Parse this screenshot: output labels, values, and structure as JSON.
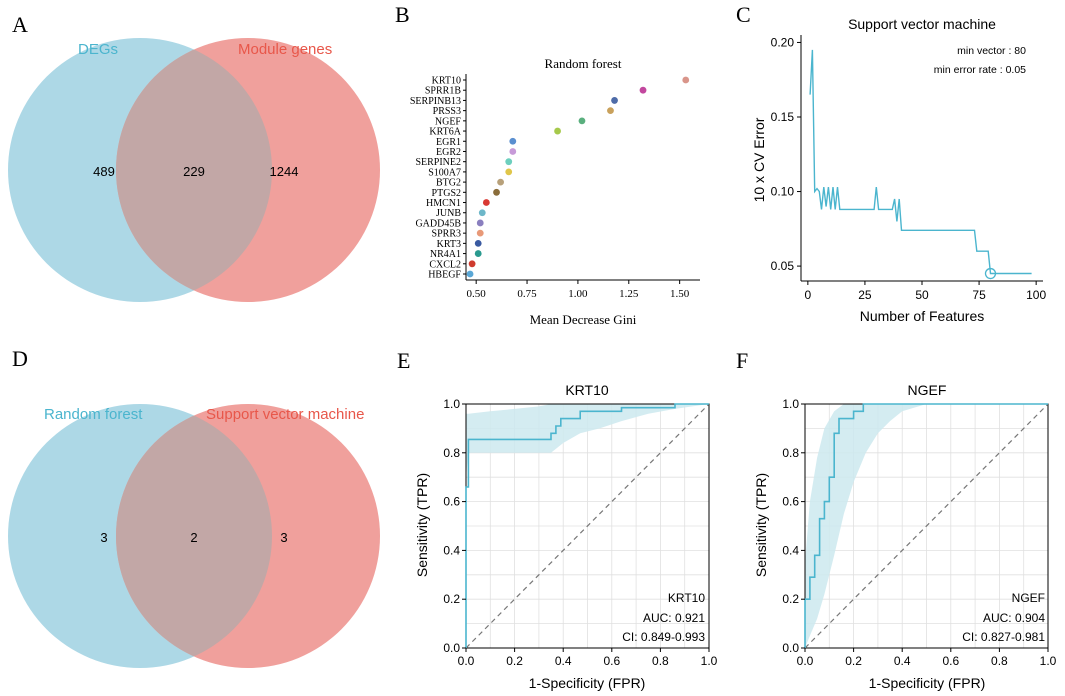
{
  "colors": {
    "venn_left": "#add8e6",
    "venn_right": "#f0a09c",
    "venn_overlap": "#c2a7a6",
    "venn_left_label": "#4bb5ce",
    "venn_right_label": "#e8574a",
    "line": "#4bb5ce",
    "ci_band": "#cde9ef",
    "grid": "#e0e0e0"
  },
  "panels": {
    "A": {
      "letter": "A",
      "left_label": "DEGs",
      "right_label": "Module genes",
      "left_only": "489",
      "overlap": "229",
      "right_only": "1244"
    },
    "D": {
      "letter": "D",
      "left_label": "Random forest",
      "right_label": "Support vector machine",
      "left_only": "3",
      "overlap": "2",
      "right_only": "3"
    },
    "B": {
      "letter": "B"
    },
    "C": {
      "letter": "C",
      "annotation_1": "min vector : 80",
      "annotation_2": "min error rate : 0.05"
    },
    "E": {
      "letter": "E",
      "legend_gene": "KRT10",
      "legend_auc": "AUC: 0.921",
      "legend_ci": "CI: 0.849-0.993"
    },
    "F": {
      "letter": "F",
      "legend_gene": "NGEF",
      "legend_auc": "AUC: 0.904",
      "legend_ci": "CI: 0.827-0.981"
    }
  },
  "chart_data": [
    {
      "id": "B",
      "type": "scatter",
      "title": "Random forest",
      "xlabel": "Mean Decrease Gini",
      "ylabel": "",
      "xlim": [
        0.45,
        1.6
      ],
      "xticks": [
        "0.50",
        "0.75",
        "1.00",
        "1.25",
        "1.50"
      ],
      "genes": [
        "KRT10",
        "SPRR1B",
        "SERPINB13",
        "PRSS3",
        "NGEF",
        "KRT6A",
        "EGR1",
        "EGR2",
        "SERPINE2",
        "S100A7",
        "BTG2",
        "PTGS2",
        "HMCN1",
        "JUNB",
        "GADD45B",
        "SPRR3",
        "KRT3",
        "NR4A1",
        "CXCL2",
        "HBEGF"
      ],
      "values": [
        1.53,
        1.32,
        1.18,
        1.16,
        1.02,
        0.9,
        0.68,
        0.68,
        0.66,
        0.66,
        0.62,
        0.6,
        0.55,
        0.53,
        0.52,
        0.52,
        0.51,
        0.51,
        0.48,
        0.47
      ],
      "colors": [
        "#d9958a",
        "#c2479e",
        "#4e6ba8",
        "#c9a15c",
        "#5aaf7e",
        "#a6c94b",
        "#5a8fd0",
        "#c79ad8",
        "#6dcfbe",
        "#e0c64a",
        "#b8a17a",
        "#8a6d3b",
        "#d93a34",
        "#6db7c9",
        "#8a7fbf",
        "#e89978",
        "#3a5aa1",
        "#2a9a8f",
        "#cf3b2e",
        "#5aa7d6"
      ]
    },
    {
      "id": "C",
      "type": "line",
      "title": "Support vector machine",
      "xlabel": "Number of Features",
      "ylabel": "10 x CV Error",
      "xlim": [
        -3,
        103
      ],
      "ylim": [
        0.04,
        0.205
      ],
      "xticks": [
        "0",
        "25",
        "50",
        "75",
        "100"
      ],
      "yticks": [
        "0.05",
        "0.10",
        "0.15",
        "0.20"
      ],
      "x": [
        1,
        2,
        3,
        4,
        5,
        6,
        7,
        8,
        9,
        10,
        11,
        12,
        13,
        14,
        15,
        20,
        25,
        29,
        30,
        31,
        35,
        37,
        38,
        39,
        40,
        41,
        45,
        50,
        55,
        60,
        65,
        70,
        73,
        74,
        75,
        79,
        80,
        85,
        90,
        95,
        98
      ],
      "values": [
        0.165,
        0.195,
        0.1,
        0.102,
        0.1,
        0.088,
        0.103,
        0.09,
        0.103,
        0.088,
        0.103,
        0.088,
        0.103,
        0.088,
        0.088,
        0.088,
        0.088,
        0.088,
        0.103,
        0.088,
        0.088,
        0.088,
        0.095,
        0.08,
        0.095,
        0.074,
        0.074,
        0.074,
        0.074,
        0.074,
        0.074,
        0.074,
        0.074,
        0.06,
        0.06,
        0.06,
        0.045,
        0.045,
        0.045,
        0.045,
        0.045
      ],
      "highlight": {
        "x": 80,
        "y": 0.045
      }
    },
    {
      "id": "E",
      "type": "line",
      "title": "KRT10",
      "xlabel": "1-Specificity (FPR)",
      "ylabel": "Sensitivity (TPR)",
      "xlim": [
        0,
        1
      ],
      "ylim": [
        0,
        1
      ],
      "xticks": [
        "0.0",
        "0.2",
        "0.4",
        "0.6",
        "0.8",
        "1.0"
      ],
      "yticks": [
        "0.0",
        "0.2",
        "0.4",
        "0.6",
        "0.8",
        "1.0"
      ],
      "x": [
        0,
        0,
        0.01,
        0.01,
        0.35,
        0.35,
        0.37,
        0.37,
        0.39,
        0.39,
        0.47,
        0.47,
        0.64,
        0.64,
        0.86,
        0.86,
        1.0
      ],
      "values": [
        0,
        0.66,
        0.66,
        0.855,
        0.855,
        0.88,
        0.88,
        0.91,
        0.91,
        0.94,
        0.94,
        0.97,
        0.97,
        0.985,
        0.985,
        1.0,
        1.0
      ],
      "ci_x": [
        0,
        0.01,
        0.1,
        0.2,
        0.3,
        0.35,
        0.4,
        0.47,
        0.55,
        0.64,
        0.75,
        0.86,
        1.0
      ],
      "ci_lower": [
        0.7,
        0.8,
        0.8,
        0.8,
        0.8,
        0.8,
        0.84,
        0.88,
        0.9,
        0.93,
        0.96,
        0.98,
        1.0
      ],
      "ci_upper": [
        0.96,
        0.96,
        0.97,
        0.98,
        0.99,
        1.0,
        1.0,
        1.0,
        1.0,
        1.0,
        1.0,
        1.0,
        1.0
      ],
      "diagonal": true
    },
    {
      "id": "F",
      "type": "line",
      "title": "NGEF",
      "xlabel": "1-Specificity (FPR)",
      "ylabel": "Sensitivity (TPR)",
      "xlim": [
        0,
        1
      ],
      "ylim": [
        0,
        1
      ],
      "xticks": [
        "0.0",
        "0.2",
        "0.4",
        "0.6",
        "0.8",
        "1.0"
      ],
      "yticks": [
        "0.0",
        "0.2",
        "0.4",
        "0.6",
        "0.8",
        "1.0"
      ],
      "x": [
        0,
        0,
        0.02,
        0.02,
        0.04,
        0.04,
        0.06,
        0.06,
        0.08,
        0.08,
        0.1,
        0.1,
        0.12,
        0.12,
        0.14,
        0.14,
        0.17,
        0.17,
        0.2,
        0.2,
        0.24,
        0.24,
        0.3,
        0.3,
        1.0
      ],
      "values": [
        0,
        0.2,
        0.2,
        0.29,
        0.29,
        0.38,
        0.38,
        0.53,
        0.53,
        0.6,
        0.6,
        0.7,
        0.7,
        0.88,
        0.88,
        0.94,
        0.94,
        0.94,
        0.94,
        0.97,
        0.97,
        1.0,
        1.0,
        1.0,
        1.0
      ],
      "ci_x": [
        0,
        0.02,
        0.05,
        0.08,
        0.12,
        0.16,
        0.2,
        0.25,
        0.3,
        0.35,
        0.4,
        0.5,
        1.0
      ],
      "ci_lower": [
        0.0,
        0.05,
        0.12,
        0.22,
        0.38,
        0.55,
        0.68,
        0.8,
        0.88,
        0.93,
        0.97,
        1.0,
        1.0
      ],
      "ci_upper": [
        0.35,
        0.6,
        0.78,
        0.9,
        0.97,
        1.0,
        1.0,
        1.0,
        1.0,
        1.0,
        1.0,
        1.0,
        1.0
      ],
      "diagonal": true
    }
  ]
}
